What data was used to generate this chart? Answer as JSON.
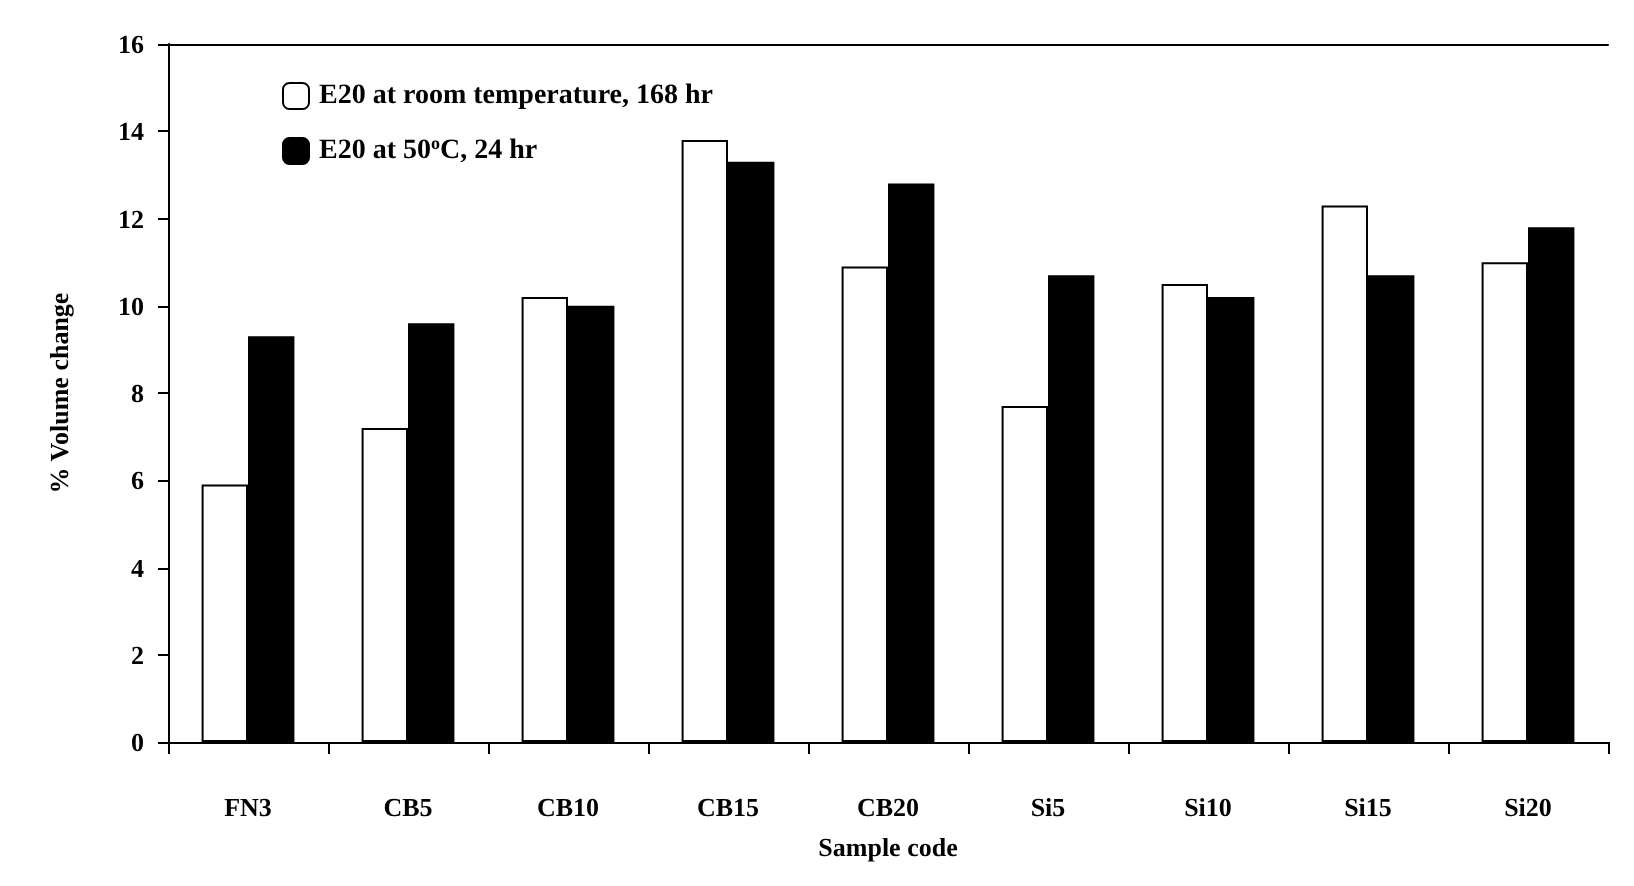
{
  "chart_data": {
    "type": "bar",
    "xlabel": "Sample code",
    "ylabel": "% Volume change",
    "categories": [
      "FN3",
      "CB5",
      "CB10",
      "CB15",
      "CB20",
      "Si5",
      "Si10",
      "Si15",
      "Si20"
    ],
    "series": [
      {
        "name": "E20 at room temperature, 168 hr",
        "color": "#ffffff",
        "values": [
          5.9,
          7.2,
          10.2,
          13.8,
          10.9,
          7.7,
          10.5,
          12.3,
          11.0
        ]
      },
      {
        "name": "E20 at 50$^{o}$C, 24 hr",
        "color": "#000000",
        "values": [
          9.3,
          9.6,
          10.0,
          13.3,
          12.8,
          10.7,
          10.2,
          10.7,
          11.8
        ]
      }
    ],
    "ylim": [
      0,
      16
    ],
    "yticks": [
      0,
      2,
      4,
      6,
      8,
      10,
      12,
      14,
      16
    ],
    "grid": false,
    "legend": "top left"
  }
}
